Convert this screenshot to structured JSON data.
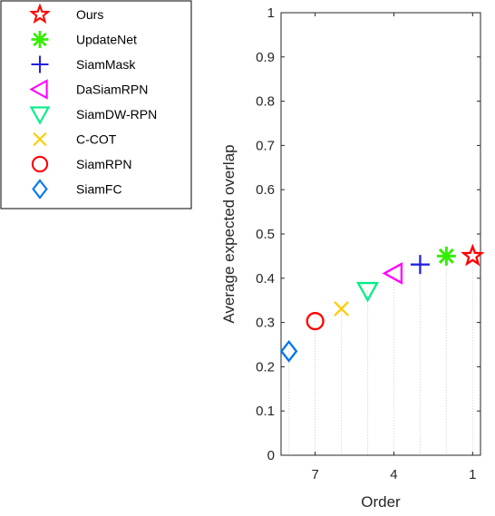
{
  "chart_data": {
    "type": "scatter",
    "title": "",
    "xlabel": "Order",
    "ylabel": "Average expected overlap",
    "xlim": [
      8.3,
      0.7
    ],
    "ylim": [
      0,
      1
    ],
    "x_direction": "reversed",
    "xticks": [
      7,
      4,
      1
    ],
    "xtick_labels": [
      "7",
      "4",
      "1"
    ],
    "yticks": [
      0,
      0.1,
      0.2,
      0.3,
      0.4,
      0.5,
      0.6,
      0.7,
      0.8,
      0.9,
      1
    ],
    "ytick_labels": [
      "0",
      "0.1",
      "0.2",
      "0.3",
      "0.4",
      "0.5",
      "0.6",
      "0.7",
      "0.8",
      "0.9",
      "1"
    ],
    "grid": false,
    "drop_lines": true,
    "legend_position": "outside-top-left",
    "series": [
      {
        "name": "Ours",
        "x": 1,
        "y": 0.45,
        "marker": "pentagram",
        "color": "#ff0000"
      },
      {
        "name": "UpdateNet",
        "x": 2,
        "y": 0.45,
        "marker": "asterisk",
        "color": "#33ee00"
      },
      {
        "name": "SiamMask",
        "x": 3,
        "y": 0.431,
        "marker": "plus",
        "color": "#2222dd"
      },
      {
        "name": "DaSiamRPN",
        "x": 4,
        "y": 0.411,
        "marker": "triangle-left",
        "color": "#ff00ff"
      },
      {
        "name": "SiamDW-RPN",
        "x": 5,
        "y": 0.372,
        "marker": "triangle-down",
        "color": "#00ee88"
      },
      {
        "name": "C-COT",
        "x": 6,
        "y": 0.331,
        "marker": "x",
        "color": "#ffcc00"
      },
      {
        "name": "SiamRPN",
        "x": 7,
        "y": 0.303,
        "marker": "circle",
        "color": "#ff0000"
      },
      {
        "name": "SiamFC",
        "x": 8,
        "y": 0.235,
        "marker": "diamond",
        "color": "#0077ee"
      }
    ]
  }
}
